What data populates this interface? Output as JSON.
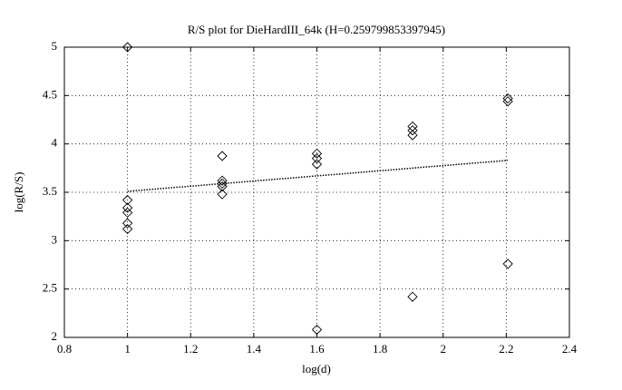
{
  "chart_data": {
    "type": "scatter",
    "title": "R/S plot for DieHardIII_64k (H=0.259799853397945)",
    "x_label": "log(d)",
    "y_label": "log(R/S)",
    "x": [
      1,
      1,
      1,
      1,
      1,
      1,
      1.3,
      1.3,
      1.3,
      1.3,
      1.3,
      1.6,
      1.6,
      1.6,
      1.6,
      1.903,
      1.903,
      1.903,
      1.903,
      2.205,
      2.205,
      2.205
    ],
    "y": [
      5.0,
      3.42,
      3.34,
      3.29,
      3.18,
      3.12,
      3.875,
      3.62,
      3.59,
      3.56,
      3.48,
      3.9,
      3.85,
      3.79,
      2.08,
      4.18,
      4.14,
      4.09,
      2.42,
      4.47,
      4.44,
      2.76
    ],
    "marker": "diamond",
    "color": "#000000",
    "fit_line": {
      "x": [
        1,
        2.205
      ],
      "y": [
        3.51,
        3.83
      ],
      "color": "#000000",
      "style": "dotted"
    },
    "xlim": [
      0.8,
      2.4
    ],
    "ylim": [
      2,
      5
    ],
    "xticks": [
      0.8,
      1,
      1.2,
      1.4,
      1.6,
      1.8,
      2,
      2.2,
      2.4
    ],
    "yticks": [
      2,
      2.5,
      3,
      3.5,
      4,
      4.5,
      5
    ],
    "grid": true
  }
}
